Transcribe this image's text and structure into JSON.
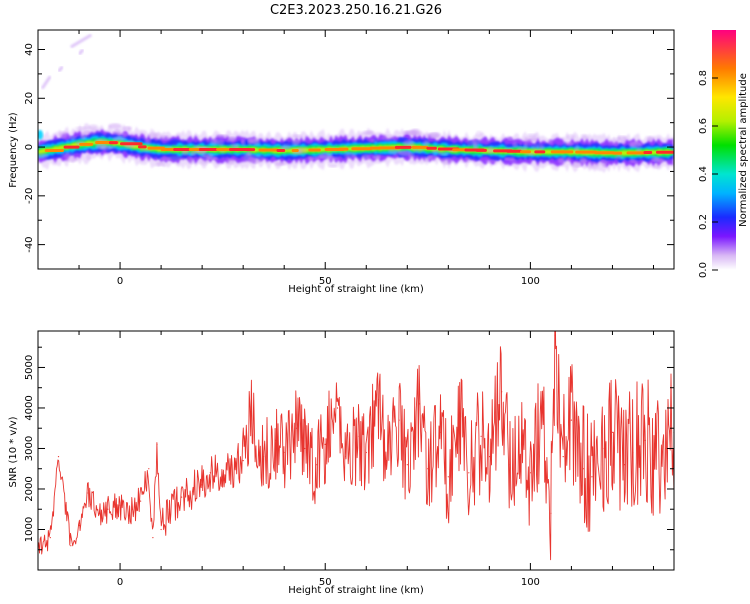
{
  "figure_title": "C2E3.2023.250.16.21.G26",
  "chart_data": [
    {
      "type": "heatmap",
      "xlabel": "Height of straight line (km)",
      "ylabel": "Frequency (Hz)",
      "xlim": [
        -20,
        135
      ],
      "ylim": [
        -50,
        48
      ],
      "x_ticks": [
        0,
        50,
        100
      ],
      "y_ticks": [
        40,
        20,
        0,
        -20,
        -40
      ],
      "colorbar": {
        "label": "Normalized spectral amplitude",
        "range": [
          0,
          1
        ],
        "ticks": [
          0.0,
          0.2,
          0.4,
          0.6,
          0.8
        ]
      },
      "ridge": {
        "x": [
          -20,
          -10,
          -5,
          0,
          5,
          10,
          20,
          30,
          40,
          50,
          60,
          70,
          80,
          90,
          100,
          110,
          120,
          135
        ],
        "y": [
          -2,
          1,
          2,
          1.5,
          0,
          -1,
          -1,
          -1,
          -1.5,
          -1,
          -0.5,
          0,
          -1,
          -1.5,
          -2,
          -2,
          -2.5,
          -2
        ]
      }
    },
    {
      "type": "line",
      "xlabel": "Height of straight line (km)",
      "ylabel": "SNR (10 * v/v)",
      "xlim": [
        -20,
        135
      ],
      "ylim": [
        0,
        5900
      ],
      "x_ticks": [
        0,
        50,
        100
      ],
      "y_ticks": [
        1000,
        2000,
        3000,
        4000,
        5000
      ],
      "series": [
        {
          "color": "#e8342e",
          "x": [
            -20,
            -17,
            -15,
            -12,
            -10,
            -8,
            -5,
            -3,
            0,
            3,
            5,
            7,
            8,
            9,
            10,
            12,
            15,
            18,
            20,
            22,
            25,
            28,
            30,
            32,
            35,
            38,
            40,
            43,
            45,
            48,
            50,
            53,
            55,
            58,
            60,
            63,
            65,
            68,
            70,
            73,
            75,
            78,
            80,
            83,
            85,
            88,
            90,
            93,
            95,
            98,
            100,
            103,
            105,
            106,
            108,
            110,
            113,
            115,
            118,
            120,
            123,
            125,
            128,
            130,
            133,
            135
          ],
          "y": [
            500,
            800,
            2800,
            600,
            1100,
            1900,
            1400,
            1500,
            1600,
            1500,
            1700,
            2500,
            800,
            3100,
            1000,
            1500,
            1800,
            2000,
            2100,
            2400,
            2300,
            2600,
            2700,
            3900,
            2800,
            3200,
            2900,
            3500,
            3000,
            2600,
            3100,
            4000,
            2800,
            3300,
            2900,
            4200,
            2700,
            3700,
            2600,
            4100,
            2500,
            3400,
            2300,
            3800,
            2400,
            3300,
            2800,
            4400,
            2600,
            3100,
            2400,
            3900,
            1400,
            5800,
            2800,
            3700,
            2500,
            2300,
            3000,
            3400,
            2600,
            2900,
            3200,
            2700,
            3000,
            3400
          ]
        }
      ]
    }
  ]
}
